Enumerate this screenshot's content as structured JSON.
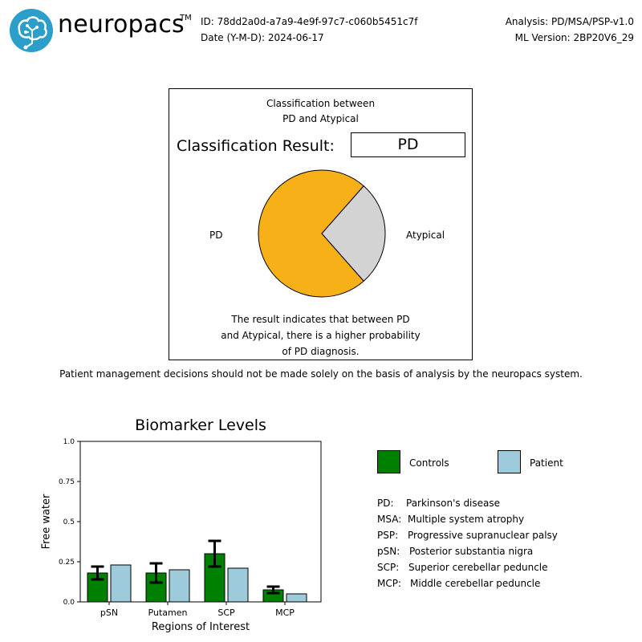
{
  "header": {
    "brand": "neuropacs",
    "trademark": "TM",
    "id_line": "ID: 78dd2a0d-a7a9-4e9f-97c7-c060b5451c7f",
    "date_line": "Date (Y-M-D): 2024-06-17",
    "analysis_line": "Analysis: PD/MSA/PSP-v1.0",
    "ml_version_line": "ML Version: 2BP20V6_29",
    "logo_icon": "brain-circuit-icon",
    "logo_color": "#2b9ec9"
  },
  "classification": {
    "title": "Classification between\nPD and Atypical",
    "result_label": "Classification Result:",
    "result_value": "PD",
    "description": "The result indicates that between PD\nand Atypical, there is a higher probability\nof PD diagnosis.",
    "pie_labels": {
      "left": "PD",
      "right": "Atypical"
    }
  },
  "disclaimer": "Patient management decisions should not be made solely on the basis of analysis by the neuropacs system.",
  "biomarker": {
    "title": "Biomarker Levels",
    "xlabel": "Regions of Interest",
    "ylabel": "Free water"
  },
  "legend": {
    "controls": "Controls",
    "patient": "Patient"
  },
  "abbreviations": [
    {
      "key": "PD:",
      "value": "Parkinson's disease"
    },
    {
      "key": "MSA:",
      "value": "Multiple system atrophy"
    },
    {
      "key": "PSP:",
      "value": "Progressive supranuclear palsy"
    },
    {
      "key": "pSN:",
      "value": "Posterior substantia nigra"
    },
    {
      "key": "SCP:",
      "value": "Superior cerebellar peduncle"
    },
    {
      "key": "MCP:",
      "value": "Middle cerebellar peduncle"
    }
  ],
  "colors": {
    "pd": "#f7b018",
    "atypical": "#d3d3d3",
    "controls": "#008000",
    "patient": "#9ecbdc"
  },
  "chart_data": [
    {
      "type": "pie",
      "categories": [
        "PD",
        "Atypical"
      ],
      "values": [
        0.73,
        0.27
      ],
      "title": "Classification between PD and Atypical"
    },
    {
      "type": "bar",
      "title": "Biomarker Levels",
      "xlabel": "Regions of Interest",
      "ylabel": "Free water",
      "categories": [
        "pSN",
        "Putamen",
        "SCP",
        "MCP"
      ],
      "ylim": [
        0,
        1.0
      ],
      "yticks": [
        "0.0",
        "0.25",
        "0.5",
        "0.75",
        "1.0"
      ],
      "series": [
        {
          "name": "Controls",
          "values": [
            0.18,
            0.18,
            0.3,
            0.075
          ],
          "error": [
            0.04,
            0.06,
            0.08,
            0.02
          ]
        },
        {
          "name": "Patient",
          "values": [
            0.23,
            0.2,
            0.21,
            0.05
          ]
        }
      ]
    }
  ]
}
